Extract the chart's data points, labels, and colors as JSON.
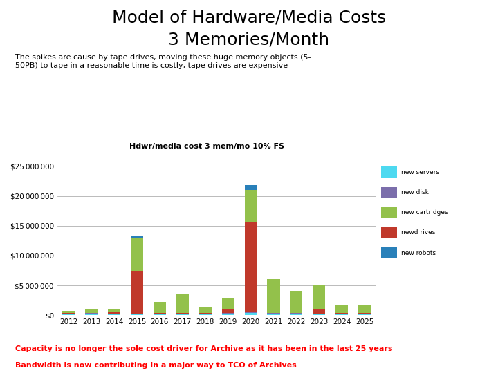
{
  "title_line1": "Model of Hardware/Media Costs",
  "title_line2": "3 Memories/Month",
  "subtitle": "The spikes are cause by tape drives, moving these huge memory objects (5-\n50PB) to tape in a reasonable time is costly, tape drives are expensive",
  "chart_title": "Hdwr/media cost 3 mem/mo 10% FS",
  "footer_line1": "Capacity is no longer the sole cost driver for Archive as it has been in the last 25 years",
  "footer_line2": "Bandwidth is now contributing in a major way to TCO of Archives",
  "years": [
    2012,
    2013,
    2014,
    2015,
    2016,
    2017,
    2018,
    2019,
    2020,
    2021,
    2022,
    2023,
    2024,
    2025
  ],
  "new_servers": [
    200000,
    250000,
    150000,
    200000,
    200000,
    200000,
    200000,
    200000,
    350000,
    250000,
    250000,
    200000,
    200000,
    200000
  ],
  "new_disk": [
    80000,
    80000,
    80000,
    80000,
    80000,
    80000,
    80000,
    150000,
    150000,
    100000,
    100000,
    100000,
    80000,
    80000
  ],
  "new_cartridges": [
    400000,
    750000,
    400000,
    5500000,
    1900000,
    3200000,
    1100000,
    2000000,
    5500000,
    5600000,
    3600000,
    4000000,
    1400000,
    1400000
  ],
  "new_drives": [
    50000,
    50000,
    300000,
    7200000,
    50000,
    100000,
    50000,
    600000,
    15000000,
    50000,
    50000,
    700000,
    50000,
    50000
  ],
  "new_robots": [
    0,
    0,
    0,
    200000,
    0,
    0,
    0,
    0,
    750000,
    0,
    0,
    0,
    0,
    0
  ],
  "color_servers": "#4dd9f0",
  "color_disk": "#7b6eab",
  "color_cartridges": "#93c14b",
  "color_drives": "#c0392b",
  "color_robots": "#2980b9",
  "ylim": [
    0,
    25000000
  ],
  "yticks": [
    0,
    5000000,
    10000000,
    15000000,
    20000000,
    25000000
  ],
  "background_color": "#ffffff",
  "grid_color": "#b0b0b0"
}
